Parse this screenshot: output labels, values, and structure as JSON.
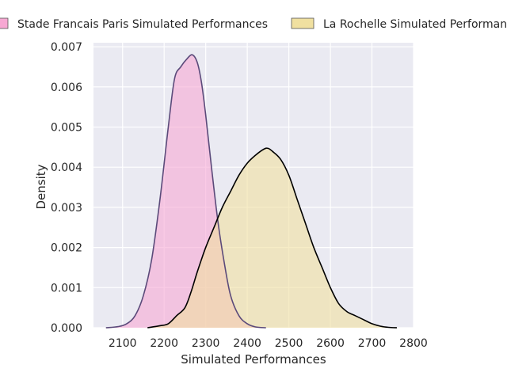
{
  "chart_data": {
    "type": "area",
    "title": "",
    "xlabel": "Simulated Performances",
    "ylabel": "Density",
    "xlim": [
      2030,
      2800
    ],
    "ylim": [
      0,
      0.0071
    ],
    "xticks": [
      2100,
      2200,
      2300,
      2400,
      2500,
      2600,
      2700,
      2800
    ],
    "xtick_labels": [
      "2100",
      "2200",
      "2300",
      "2400",
      "2500",
      "2600",
      "2700",
      "2800"
    ],
    "yticks": [
      0,
      0.001,
      0.002,
      0.003,
      0.004,
      0.005,
      0.006,
      0.007
    ],
    "ytick_labels": [
      "0.000",
      "0.001",
      "0.002",
      "0.003",
      "0.004",
      "0.005",
      "0.006",
      "0.007"
    ],
    "grid": true,
    "legend_position": "top",
    "series": [
      {
        "name": "Stade Francais Paris Simulated Performances",
        "fill_color": "#f7a8d3",
        "line_color": "#5b4a7a",
        "x": [
          2060,
          2090,
          2110,
          2130,
          2150,
          2170,
          2190,
          2210,
          2225,
          2240,
          2255,
          2268,
          2280,
          2290,
          2300,
          2315,
          2330,
          2345,
          2360,
          2380,
          2400,
          2420,
          2445
        ],
        "y": [
          0.0,
          3e-05,
          0.0001,
          0.0003,
          0.0008,
          0.0017,
          0.0032,
          0.005,
          0.0062,
          0.0065,
          0.0067,
          0.0068,
          0.0066,
          0.0061,
          0.0053,
          0.0039,
          0.0026,
          0.0016,
          0.0008,
          0.0003,
          0.0001,
          2e-05,
          0.0
        ]
      },
      {
        "name": "La Rochelle Simulated Performances",
        "fill_color": "#f0e0a0",
        "line_color": "#000000",
        "x": [
          2160,
          2190,
          2210,
          2230,
          2250,
          2265,
          2280,
          2300,
          2320,
          2340,
          2360,
          2380,
          2400,
          2420,
          2440,
          2450,
          2460,
          2480,
          2500,
          2520,
          2540,
          2560,
          2580,
          2600,
          2620,
          2640,
          2660,
          2680,
          2700,
          2720,
          2740,
          2760
        ],
        "y": [
          0.0,
          5e-05,
          0.0001,
          0.0003,
          0.0005,
          0.0009,
          0.0014,
          0.002,
          0.0025,
          0.003,
          0.0034,
          0.0038,
          0.0041,
          0.0043,
          0.00445,
          0.00447,
          0.0044,
          0.0042,
          0.0038,
          0.0032,
          0.0026,
          0.002,
          0.0015,
          0.001,
          0.0006,
          0.0004,
          0.0003,
          0.0002,
          0.0001,
          4e-05,
          1e-05,
          0.0
        ]
      }
    ]
  }
}
